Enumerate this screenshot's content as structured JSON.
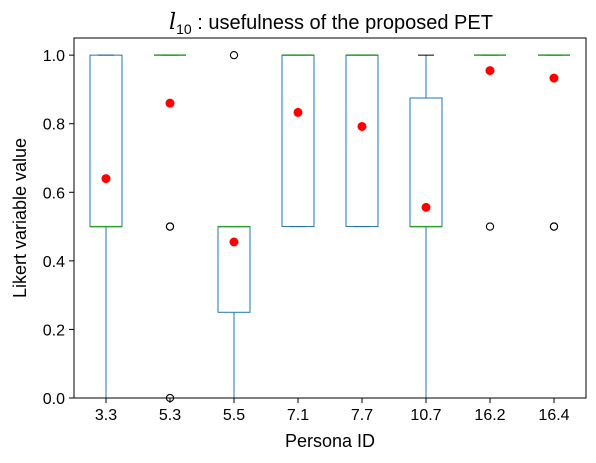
{
  "chart_data": {
    "type": "boxplot",
    "title_math": "l",
    "title_sub": "10",
    "title_text": " : usefulness of the proposed PET",
    "xlabel": "Persona ID",
    "ylabel": "Likert variable value",
    "ylim": [
      0.0,
      1.05
    ],
    "yticks": [
      0.0,
      0.2,
      0.4,
      0.6,
      0.8,
      1.0
    ],
    "ytick_labels": [
      "0.0",
      "0.2",
      "0.4",
      "0.6",
      "0.8",
      "1.0"
    ],
    "categories": [
      "3.3",
      "5.3",
      "5.5",
      "7.1",
      "7.7",
      "10.7",
      "16.2",
      "16.4"
    ],
    "boxes": [
      {
        "q1": 0.5,
        "median": 0.5,
        "q3": 1.0,
        "whisker_low": 0.0,
        "whisker_high": 1.0,
        "outliers": [],
        "mean": 0.64
      },
      {
        "q1": 1.0,
        "median": 1.0,
        "q3": 1.0,
        "whisker_low": 1.0,
        "whisker_high": 1.0,
        "outliers": [
          0.5,
          0.5,
          0.0
        ],
        "mean": 0.86
      },
      {
        "q1": 0.25,
        "median": 0.5,
        "q3": 0.5,
        "whisker_low": 0.0,
        "whisker_high": 0.5,
        "outliers": [
          1.0
        ],
        "mean": 0.455
      },
      {
        "q1": 0.5,
        "median": 1.0,
        "q3": 1.0,
        "whisker_low": 0.5,
        "whisker_high": 1.0,
        "outliers": [],
        "mean": 0.833
      },
      {
        "q1": 0.5,
        "median": 1.0,
        "q3": 1.0,
        "whisker_low": 0.5,
        "whisker_high": 1.0,
        "outliers": [],
        "mean": 0.792
      },
      {
        "q1": 0.5,
        "median": 0.5,
        "q3": 0.875,
        "whisker_low": 0.0,
        "whisker_high": 1.0,
        "outliers": [],
        "mean": 0.556
      },
      {
        "q1": 1.0,
        "median": 1.0,
        "q3": 1.0,
        "whisker_low": 1.0,
        "whisker_high": 1.0,
        "outliers": [
          0.5
        ],
        "mean": 0.955
      },
      {
        "q1": 1.0,
        "median": 1.0,
        "q3": 1.0,
        "whisker_low": 1.0,
        "whisker_high": 1.0,
        "outliers": [
          0.5,
          0.5
        ],
        "mean": 0.933
      }
    ],
    "grid": false,
    "colors": {
      "box": "#1f77b4",
      "median": "#2ca02c",
      "mean": "#ff0000",
      "cap": "#000000",
      "outlier": "#000000"
    }
  }
}
